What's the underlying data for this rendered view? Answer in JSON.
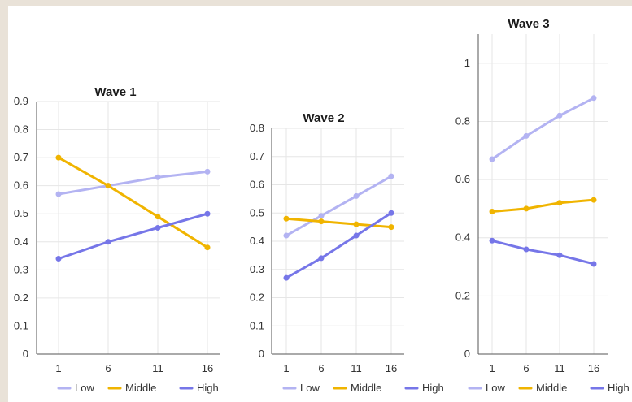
{
  "colors": {
    "low": "#b3b3f2",
    "middle": "#f0b400",
    "high": "#7676e8"
  },
  "chart_data": [
    {
      "type": "line",
      "title": "Wave 1",
      "x": [
        1,
        6,
        11,
        16
      ],
      "ylim": [
        0,
        0.9
      ],
      "yticks": [
        "0",
        "0.1",
        "0.2",
        "0.3",
        "0.4",
        "0.5",
        "0.6",
        "0.7",
        "0.8",
        "0.9"
      ],
      "legend": "bottom",
      "series": [
        {
          "name": "Low",
          "color": "#b3b3f2",
          "values": [
            0.57,
            0.6,
            0.63,
            0.65
          ]
        },
        {
          "name": "Middle",
          "color": "#f0b400",
          "values": [
            0.7,
            0.6,
            0.49,
            0.38
          ]
        },
        {
          "name": "High",
          "color": "#7676e8",
          "values": [
            0.34,
            0.4,
            0.45,
            0.5
          ]
        }
      ]
    },
    {
      "type": "line",
      "title": "Wave 2",
      "x": [
        1,
        6,
        11,
        16
      ],
      "ylim": [
        0,
        0.8
      ],
      "yticks": [
        "0",
        "0.1",
        "0.2",
        "0.3",
        "0.4",
        "0.5",
        "0.6",
        "0.7",
        "0.8"
      ],
      "legend": "bottom",
      "series": [
        {
          "name": "Low",
          "color": "#b3b3f2",
          "values": [
            0.42,
            0.49,
            0.56,
            0.63
          ]
        },
        {
          "name": "Middle",
          "color": "#f0b400",
          "values": [
            0.48,
            0.47,
            0.46,
            0.45
          ]
        },
        {
          "name": "High",
          "color": "#7676e8",
          "values": [
            0.27,
            0.34,
            0.42,
            0.5
          ]
        }
      ]
    },
    {
      "type": "line",
      "title": "Wave 3",
      "x": [
        1,
        6,
        11,
        16
      ],
      "ylim": [
        0,
        1.1
      ],
      "yticks": [
        "0",
        "0.2",
        "0.4",
        "0.6",
        "0.8",
        "1"
      ],
      "legend": "bottom",
      "series": [
        {
          "name": "Low",
          "color": "#b3b3f2",
          "values": [
            0.67,
            0.75,
            0.82,
            0.88
          ]
        },
        {
          "name": "Middle",
          "color": "#f0b400",
          "values": [
            0.49,
            0.5,
            0.52,
            0.53
          ]
        },
        {
          "name": "High",
          "color": "#7676e8",
          "values": [
            0.39,
            0.36,
            0.34,
            0.31
          ]
        }
      ]
    }
  ]
}
